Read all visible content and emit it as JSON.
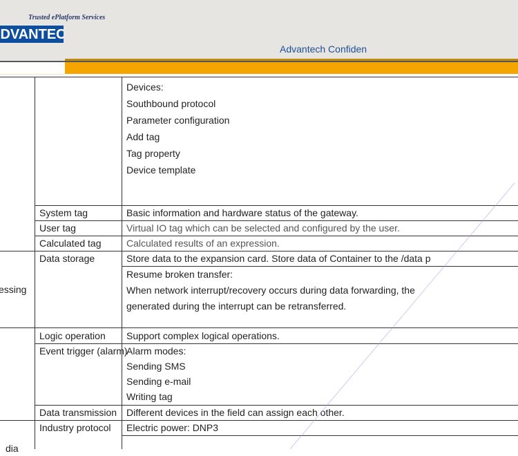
{
  "header": {
    "tagline": "Trusted ePlatform Services",
    "logo_text": "ADVANTECH",
    "confidential": "Advantech Confiden"
  },
  "table": {
    "devices_lines": [
      "Devices:",
      "Southbound protocol",
      "Parameter configuration",
      "Add tag",
      "Tag property",
      "Device template"
    ],
    "rows": [
      {
        "feature": "System tag",
        "desc": "Basic information and hardware status of the gateway."
      },
      {
        "feature": "User tag",
        "desc": "Virtual IO tag which can be selected and configured by the user."
      },
      {
        "feature": "Calculated tag",
        "desc": "Calculated results of an expression."
      },
      {
        "feature": "Data storage",
        "desc": "Store data to the expansion card. Store data of Container to the /data p"
      },
      {
        "feature": "",
        "desc_lines": [
          "Resume broken transfer:",
          "When network interrupt/recovery occurs during data forwarding, the",
          "generated during the interrupt can be retransferred."
        ]
      },
      {
        "feature": "Logic operation",
        "desc": "Support complex logical operations."
      },
      {
        "feature": "Event trigger (alarm)",
        "desc_lines": [
          "Alarm modes:",
          "Sending SMS",
          "Sending e-mail",
          "Writing tag"
        ]
      },
      {
        "feature": "Data transmission",
        "desc": "Different devices in the field can assign each other."
      },
      {
        "feature": "Industry protocol",
        "desc": "Electric power: DNP3"
      }
    ],
    "groups": [
      "essing",
      "dia"
    ]
  }
}
